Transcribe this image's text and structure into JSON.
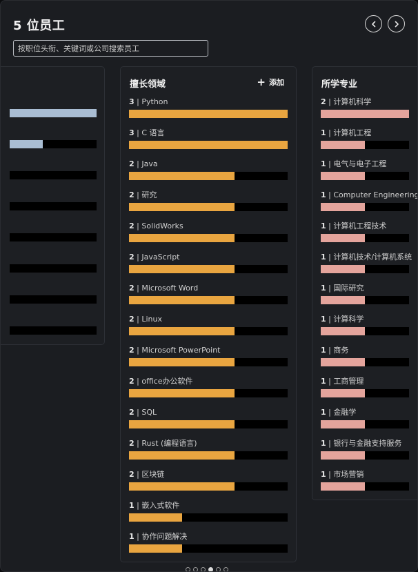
{
  "header": {
    "title": "5 位员工",
    "search_placeholder": "按职位头衔、关键词或公司搜索员工"
  },
  "colors": {
    "left_bar": "#a9bdd3",
    "skills_bar": "#e9a540",
    "majors_bar": "#e4a49c",
    "track": "#000000"
  },
  "left_card": {
    "bars": [
      {
        "value": 1.0
      },
      {
        "value": 0.38
      },
      {
        "value": 0
      },
      {
        "value": 0
      },
      {
        "value": 0
      },
      {
        "value": 0
      },
      {
        "value": 0
      },
      {
        "value": 0
      }
    ]
  },
  "skills": {
    "title": "擅长领域",
    "add_label": "添加",
    "max": 3,
    "items": [
      {
        "count": "3",
        "label": "Python",
        "value": 3
      },
      {
        "count": "3",
        "label": "C 语言",
        "value": 3
      },
      {
        "count": "2",
        "label": "Java",
        "value": 2
      },
      {
        "count": "2",
        "label": "研究",
        "value": 2
      },
      {
        "count": "2",
        "label": "SolidWorks",
        "value": 2
      },
      {
        "count": "2",
        "label": "JavaScript",
        "value": 2
      },
      {
        "count": "2",
        "label": "Microsoft Word",
        "value": 2
      },
      {
        "count": "2",
        "label": "Linux",
        "value": 2
      },
      {
        "count": "2",
        "label": "Microsoft PowerPoint",
        "value": 2
      },
      {
        "count": "2",
        "label": "office办公软件",
        "value": 2
      },
      {
        "count": "2",
        "label": "SQL",
        "value": 2
      },
      {
        "count": "2",
        "label": "Rust (编程语言)",
        "value": 2
      },
      {
        "count": "2",
        "label": "区块链",
        "value": 2
      },
      {
        "count": "1",
        "label": "嵌入式软件",
        "value": 1
      },
      {
        "count": "1",
        "label": "协作问题解决",
        "value": 1
      }
    ]
  },
  "majors": {
    "title": "所学专业",
    "max": 2,
    "items": [
      {
        "count": "2",
        "label": "计算机科学",
        "value": 2
      },
      {
        "count": "1",
        "label": "计算机工程",
        "value": 1
      },
      {
        "count": "1",
        "label": "电气与电子工程",
        "value": 1
      },
      {
        "count": "1",
        "label": "Computer Engineering",
        "value": 1
      },
      {
        "count": "1",
        "label": "计算机工程技术",
        "value": 1
      },
      {
        "count": "1",
        "label": "计算机技术/计算机系统",
        "value": 1
      },
      {
        "count": "1",
        "label": "国际研究",
        "value": 1
      },
      {
        "count": "1",
        "label": "计算科学",
        "value": 1
      },
      {
        "count": "1",
        "label": "商务",
        "value": 1
      },
      {
        "count": "1",
        "label": "工商管理",
        "value": 1
      },
      {
        "count": "1",
        "label": "金融学",
        "value": 1
      },
      {
        "count": "1",
        "label": "银行与金融支持服务",
        "value": 1
      },
      {
        "count": "1",
        "label": "市场营销",
        "value": 1
      }
    ]
  },
  "pagination": {
    "total": 6,
    "active": 3
  }
}
